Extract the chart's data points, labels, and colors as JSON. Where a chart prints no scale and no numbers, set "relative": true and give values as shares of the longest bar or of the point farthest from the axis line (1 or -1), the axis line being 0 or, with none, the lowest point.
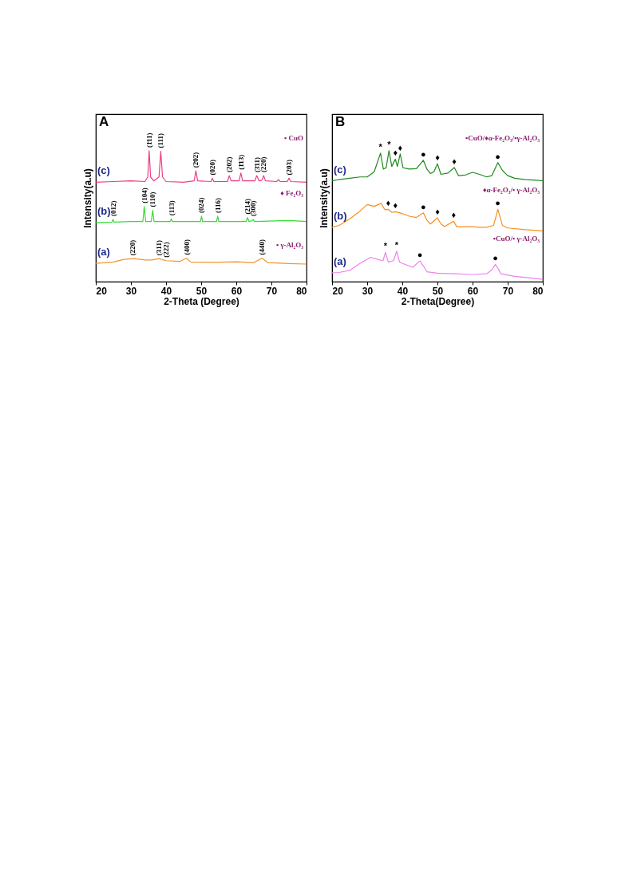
{
  "chart_data": [
    {
      "type": "line",
      "title": "A",
      "xlabel": "2-Theta (Degree)",
      "ylabel": "Intensity(a.u)",
      "relative": true,
      "xlim": [
        20,
        80
      ],
      "xticks": [
        20,
        30,
        40,
        50,
        60,
        70,
        80
      ],
      "legend": false,
      "series": [
        {
          "name": "(a)",
          "color": "#f5922a",
          "x": [
            20,
            25,
            28,
            31,
            34,
            36,
            38,
            40,
            44,
            45.8,
            47,
            55,
            60,
            65,
            67.3,
            69,
            75,
            80
          ],
          "values": [
            0.14,
            0.15,
            0.17,
            0.176,
            0.165,
            0.165,
            0.176,
            0.16,
            0.155,
            0.18,
            0.15,
            0.148,
            0.152,
            0.145,
            0.18,
            0.145,
            0.138,
            0.134
          ]
        },
        {
          "name": "(b)",
          "color": "#33dd33",
          "x": [
            20,
            24.6,
            24.9,
            25.2,
            30,
            33.4,
            33.8,
            34.2,
            35.8,
            36.2,
            36.6,
            41.2,
            41.5,
            41.8,
            49.8,
            50.1,
            50.4,
            54.4,
            54.7,
            55,
            62.8,
            63.2,
            63.6,
            64.5,
            64.8,
            65.2,
            72.8,
            76,
            80
          ],
          "values": [
            0.45,
            0.455,
            0.475,
            0.455,
            0.46,
            0.46,
            0.574,
            0.46,
            0.46,
            0.545,
            0.46,
            0.46,
            0.48,
            0.46,
            0.46,
            0.5,
            0.46,
            0.46,
            0.5,
            0.46,
            0.46,
            0.49,
            0.46,
            0.465,
            0.475,
            0.46,
            0.465,
            0.465,
            0.46
          ]
        },
        {
          "name": "(c)",
          "color": "#ec3f86",
          "x": [
            20,
            25,
            30,
            34,
            34.8,
            35.2,
            35.6,
            36.5,
            38,
            38.5,
            39,
            40,
            45,
            48,
            48.5,
            49,
            52.8,
            53.2,
            53.6,
            57.5,
            58,
            58.5,
            60.8,
            61.3,
            61.8,
            65.3,
            65.8,
            66.5,
            67.3,
            67.8,
            68.3,
            71.5,
            72,
            72.5,
            74.5,
            75,
            75.5,
            80
          ],
          "values": [
            0.76,
            0.765,
            0.77,
            0.765,
            0.8,
            1.0,
            0.8,
            0.77,
            0.8,
            0.996,
            0.8,
            0.765,
            0.76,
            0.77,
            0.846,
            0.77,
            0.765,
            0.79,
            0.765,
            0.765,
            0.81,
            0.77,
            0.77,
            0.83,
            0.77,
            0.77,
            0.81,
            0.77,
            0.775,
            0.81,
            0.77,
            0.765,
            0.78,
            0.765,
            0.765,
            0.79,
            0.765,
            0.76
          ]
        }
      ],
      "annotations": [
        {
          "text": "(1̄11)",
          "x": 35.2,
          "y": 1.0
        },
        {
          "text": "(111)",
          "x": 38.5,
          "y": 0.996
        },
        {
          "text": "(2̄02)",
          "x": 48.5,
          "y": 0.846
        },
        {
          "text": "(020)",
          "x": 53.2,
          "y": 0.79
        },
        {
          "text": "(202)",
          "x": 58,
          "y": 0.81
        },
        {
          "text": "(1̄13)",
          "x": 61.3,
          "y": 0.83
        },
        {
          "text": "(3̄11)",
          "x": 65.8,
          "y": 0.81
        },
        {
          "text": "(220)",
          "x": 67.8,
          "y": 0.81
        },
        {
          "text": "(203)",
          "x": 75,
          "y": 0.79
        },
        {
          "text": "(012)",
          "x": 24.9,
          "y": 0.475
        },
        {
          "text": "(104)",
          "x": 33.8,
          "y": 0.574
        },
        {
          "text": "(110)",
          "x": 36.2,
          "y": 0.545
        },
        {
          "text": "(113)",
          "x": 41.5,
          "y": 0.48
        },
        {
          "text": "(024)",
          "x": 50.1,
          "y": 0.5
        },
        {
          "text": "(116)",
          "x": 54.7,
          "y": 0.5
        },
        {
          "text": "(214)",
          "x": 63.2,
          "y": 0.49
        },
        {
          "text": "(300)",
          "x": 64.8,
          "y": 0.475
        },
        {
          "text": "(220)",
          "x": 30.5,
          "y": 0.176
        },
        {
          "text": "(311)",
          "x": 38,
          "y": 0.176
        },
        {
          "text": "(222)",
          "x": 40,
          "y": 0.16
        },
        {
          "text": "(400)",
          "x": 45.8,
          "y": 0.18
        },
        {
          "text": "(440)",
          "x": 67.3,
          "y": 0.18
        },
        "• γ-Al₂O₃",
        "♦ Fe₂O₃",
        "• CuO"
      ]
    },
    {
      "type": "line",
      "title": "B",
      "xlabel": "2-Theta(Degree)",
      "ylabel": "Intensity(a.u)",
      "relative": true,
      "xlim": [
        20,
        80
      ],
      "xticks": [
        20,
        30,
        40,
        50,
        60,
        70,
        80
      ],
      "legend": false,
      "series": [
        {
          "name": "(a)",
          "color": "#ee82ee",
          "x": [
            20,
            22,
            25,
            28,
            31,
            33,
            34.5,
            35.2,
            36,
            37.5,
            38.4,
            39.2,
            40,
            43,
            45,
            46,
            47,
            50,
            55,
            60,
            64,
            65.5,
            66.5,
            67.5,
            68,
            72,
            76,
            80
          ],
          "values": [
            0.068,
            0.07,
            0.086,
            0.14,
            0.186,
            0.17,
            0.16,
            0.223,
            0.15,
            0.16,
            0.232,
            0.15,
            0.14,
            0.11,
            0.159,
            0.12,
            0.075,
            0.065,
            0.06,
            0.055,
            0.06,
            0.09,
            0.132,
            0.09,
            0.06,
            0.04,
            0.03,
            0.018
          ]
        },
        {
          "name": "(b)",
          "color": "#f7901e",
          "x": [
            20,
            22,
            25,
            28,
            30,
            32,
            34,
            35,
            36,
            37,
            38,
            40,
            42,
            44,
            46,
            47,
            48,
            50,
            51,
            52,
            54.6,
            55.5,
            58,
            60,
            62,
            64,
            66,
            67.2,
            68.5,
            70,
            75,
            80
          ],
          "values": [
            0.415,
            0.43,
            0.479,
            0.54,
            0.589,
            0.575,
            0.598,
            0.55,
            0.552,
            0.53,
            0.534,
            0.52,
            0.5,
            0.49,
            0.525,
            0.47,
            0.44,
            0.488,
            0.44,
            0.42,
            0.461,
            0.42,
            0.42,
            0.42,
            0.415,
            0.415,
            0.43,
            0.552,
            0.43,
            0.41,
            0.397,
            0.388
          ]
        },
        {
          "name": "(c)",
          "color": "#1f8a1f",
          "x": [
            20,
            22,
            25,
            28,
            30,
            32,
            33.8,
            34.6,
            35.4,
            36.2,
            37,
            38,
            38.6,
            39.4,
            40.2,
            42,
            44,
            46,
            47,
            48,
            49,
            50,
            51,
            53,
            54.8,
            56,
            58,
            60,
            62,
            64,
            65.5,
            67.2,
            68.5,
            70,
            72,
            75,
            78,
            80
          ],
          "values": [
            0.77,
            0.78,
            0.79,
            0.8,
            0.8,
            0.84,
            0.982,
            0.86,
            0.87,
            1.0,
            0.88,
            0.936,
            0.88,
            0.976,
            0.87,
            0.86,
            0.863,
            0.927,
            0.86,
            0.826,
            0.84,
            0.9,
            0.82,
            0.83,
            0.872,
            0.81,
            0.815,
            0.835,
            0.82,
            0.8,
            0.81,
            0.909,
            0.85,
            0.81,
            0.79,
            0.78,
            0.775,
            0.771
          ]
        }
      ],
      "annotations": [
        {
          "text": "*",
          "x": 33.8,
          "y": 0.982
        },
        {
          "text": "*",
          "x": 36.2,
          "y": 1.0
        },
        {
          "text": "♦",
          "x": 38,
          "y": 0.936
        },
        {
          "text": "♦",
          "x": 39.4,
          "y": 0.976
        },
        {
          "text": "●",
          "x": 46,
          "y": 0.927
        },
        {
          "text": "♦",
          "x": 50,
          "y": 0.9
        },
        {
          "text": "♦",
          "x": 54.8,
          "y": 0.872
        },
        {
          "text": "●",
          "x": 67.2,
          "y": 0.909
        },
        {
          "text": "♦",
          "x": 36,
          "y": 0.552
        },
        {
          "text": "♦",
          "x": 38,
          "y": 0.534
        },
        {
          "text": "●",
          "x": 46,
          "y": 0.525
        },
        {
          "text": "♦",
          "x": 50,
          "y": 0.488
        },
        {
          "text": "♦",
          "x": 54.6,
          "y": 0.461
        },
        {
          "text": "●",
          "x": 67.2,
          "y": 0.552
        },
        {
          "text": "*",
          "x": 35.2,
          "y": 0.223
        },
        {
          "text": "*",
          "x": 38.4,
          "y": 0.232
        },
        {
          "text": "●",
          "x": 45,
          "y": 0.159
        },
        {
          "text": "●",
          "x": 66.5,
          "y": 0.132
        },
        "•CuO/• γ-Al₂O₃",
        "♦α-Fe₂O₃/• γ-Al₂O₃",
        "•CuO/♦α-Fe₂O₃/•γ-Al₂O₃"
      ]
    }
  ]
}
